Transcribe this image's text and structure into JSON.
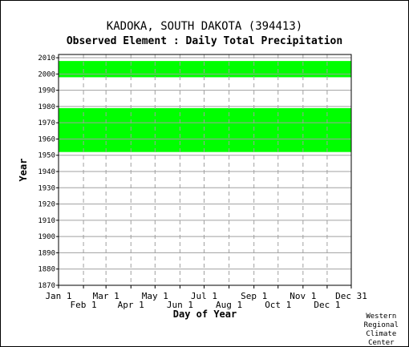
{
  "title": "KADOKA, SOUTH DAKOTA   (394413)",
  "subtitle": "Observed Element : Daily Total Precipitation",
  "credit": [
    "Western",
    "Regional",
    "Climate",
    "Center"
  ],
  "colors": {
    "data": "#00ff00",
    "grid": "#a0a0a0",
    "frame": "#000000"
  },
  "chart_data": {
    "type": "heatmap",
    "xlabel": "Day of Year",
    "ylabel": "Year",
    "xlim": [
      1,
      365
    ],
    "ylim": [
      1870,
      2012
    ],
    "x_ticks_row1": [
      {
        "label": "Jan 1",
        "day": 1
      },
      {
        "label": "Mar 1",
        "day": 60
      },
      {
        "label": "May 1",
        "day": 121
      },
      {
        "label": "Jul 1",
        "day": 182
      },
      {
        "label": "Sep 1",
        "day": 244
      },
      {
        "label": "Nov 1",
        "day": 305
      },
      {
        "label": "Dec 31",
        "day": 365
      }
    ],
    "x_ticks_row2": [
      {
        "label": "Feb 1",
        "day": 32
      },
      {
        "label": "Apr 1",
        "day": 91
      },
      {
        "label": "Jun 1",
        "day": 152
      },
      {
        "label": "Aug 1",
        "day": 213
      },
      {
        "label": "Oct 1",
        "day": 274
      },
      {
        "label": "Dec 1",
        "day": 335
      }
    ],
    "y_ticks": [
      1870,
      1880,
      1890,
      1900,
      1910,
      1920,
      1930,
      1940,
      1950,
      1960,
      1970,
      1980,
      1990,
      2000,
      2010
    ],
    "grid": true,
    "data_coverage": [
      {
        "start_year": 1952,
        "end_year": 1978,
        "start_day": 1,
        "end_day": 365
      },
      {
        "start_year": 1998,
        "end_year": 2007,
        "start_day": 1,
        "end_day": 365
      }
    ]
  }
}
